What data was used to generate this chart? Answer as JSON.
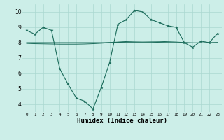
{
  "xlabel": "Humidex (Indice chaleur)",
  "bg_color": "#cceee8",
  "line_color": "#1a6b5a",
  "grid_color": "#aad8d0",
  "xlim": [
    -0.5,
    23.5
  ],
  "ylim": [
    3.5,
    10.5
  ],
  "yticks": [
    4,
    5,
    6,
    7,
    8,
    9,
    10
  ],
  "xticks": [
    0,
    1,
    2,
    3,
    4,
    5,
    6,
    7,
    8,
    9,
    10,
    11,
    12,
    13,
    14,
    15,
    16,
    17,
    18,
    19,
    20,
    21,
    22,
    23
  ],
  "series1_x": [
    0,
    1,
    2,
    3,
    4,
    5,
    6,
    7,
    8,
    9,
    10,
    11,
    12,
    13,
    14,
    15,
    16,
    17,
    18,
    19,
    20,
    21,
    22,
    23
  ],
  "series1_y": [
    8.8,
    8.55,
    9.0,
    8.8,
    6.3,
    5.3,
    4.4,
    4.2,
    3.7,
    5.1,
    6.7,
    9.2,
    9.5,
    10.1,
    10.0,
    9.5,
    9.3,
    9.1,
    9.0,
    8.0,
    7.7,
    8.1,
    8.0,
    8.6
  ],
  "series2_x": [
    0,
    1,
    2,
    3,
    4,
    5,
    6,
    7,
    8,
    9,
    10,
    11,
    12,
    13,
    14,
    15,
    16,
    17,
    18,
    19,
    20,
    21,
    22,
    23
  ],
  "series2_y": [
    7.95,
    7.93,
    7.92,
    7.91,
    7.9,
    7.9,
    7.9,
    7.91,
    7.93,
    7.96,
    8.0,
    8.04,
    8.07,
    8.09,
    8.1,
    8.09,
    8.08,
    8.06,
    8.04,
    8.01,
    7.98,
    7.98,
    7.99,
    8.01
  ],
  "series3_x": [
    0,
    1,
    2,
    3,
    4,
    5,
    6,
    7,
    8,
    9,
    10,
    11,
    12,
    13,
    14,
    15,
    16,
    17,
    18,
    19,
    20,
    21,
    22,
    23
  ],
  "series3_y": [
    8.0,
    8.0,
    8.0,
    8.0,
    8.0,
    8.0,
    8.0,
    8.0,
    8.0,
    8.0,
    8.01,
    8.02,
    8.03,
    8.03,
    8.03,
    8.03,
    8.02,
    8.01,
    8.0,
    7.99,
    7.99,
    7.99,
    8.0,
    8.0
  ],
  "series4_x": [
    0,
    1,
    2,
    3,
    4,
    5,
    6,
    7,
    8,
    9,
    10,
    11,
    12,
    13,
    14,
    15,
    16,
    17,
    18,
    19,
    20,
    21,
    22,
    23
  ],
  "series4_y": [
    8.0,
    8.0,
    8.0,
    8.0,
    8.0,
    8.0,
    8.0,
    8.0,
    8.0,
    8.0,
    8.0,
    8.0,
    8.0,
    8.0,
    8.0,
    8.0,
    8.0,
    8.0,
    8.0,
    8.0,
    8.0,
    8.0,
    8.0,
    8.0
  ],
  "figsize": [
    3.2,
    2.0
  ],
  "dpi": 100
}
